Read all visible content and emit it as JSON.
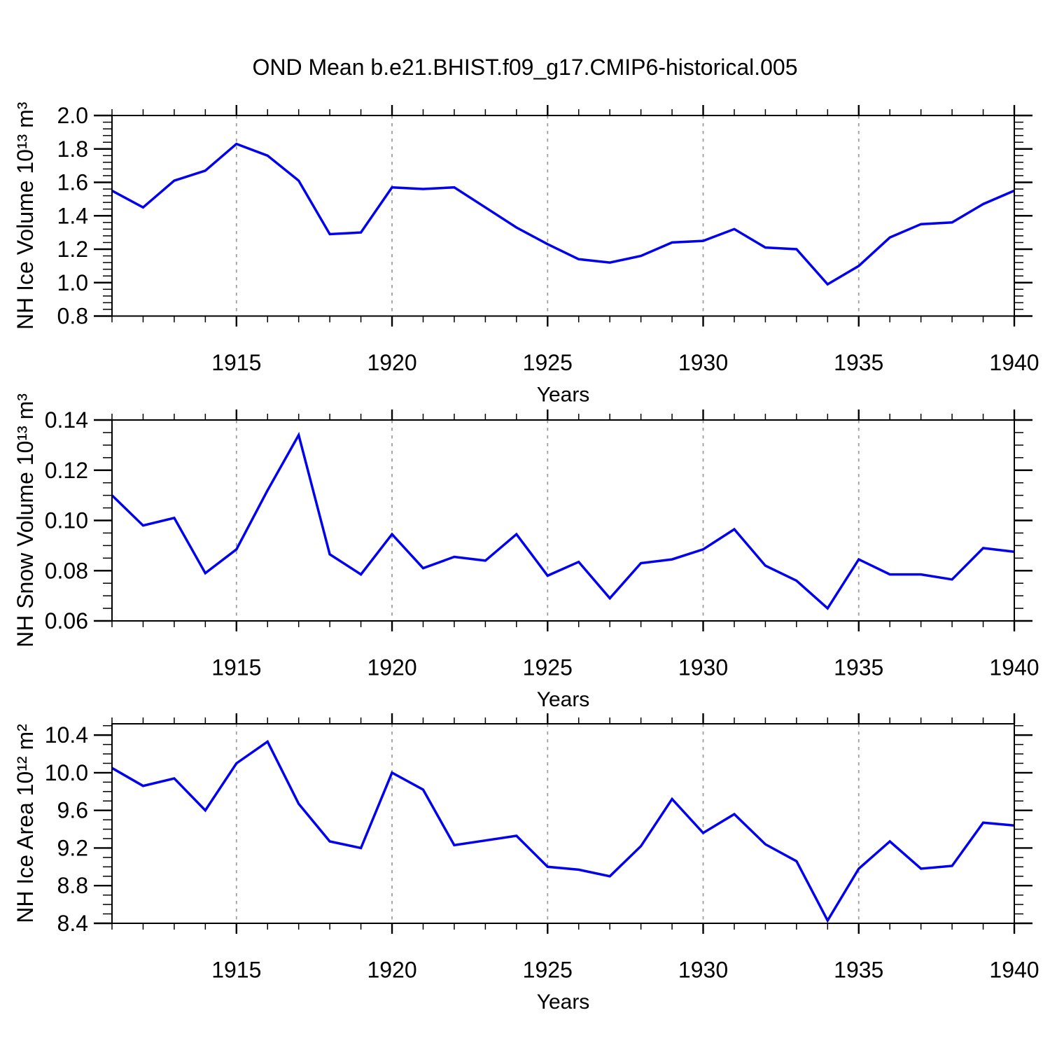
{
  "title": "OND Mean b.e21.BHIST.f09_g17.CMIP6-historical.005",
  "colors": {
    "line": "#0101f0",
    "grid": "#9e9e9e",
    "axis": "#000000",
    "text": "#000000",
    "background": "#ffffff"
  },
  "chart_data": [
    {
      "id": "nh-ice-volume",
      "type": "line",
      "ylabel": "NH Ice Volume 10¹³ m³",
      "xlabel": "Years",
      "x": [
        1911,
        1912,
        1913,
        1914,
        1915,
        1916,
        1917,
        1918,
        1919,
        1920,
        1921,
        1922,
        1923,
        1924,
        1925,
        1926,
        1927,
        1928,
        1929,
        1930,
        1931,
        1932,
        1933,
        1934,
        1935,
        1936,
        1937,
        1938,
        1939,
        1940
      ],
      "values": [
        1.55,
        1.45,
        1.61,
        1.67,
        1.83,
        1.76,
        1.61,
        1.29,
        1.3,
        1.57,
        1.56,
        1.57,
        1.45,
        1.33,
        1.23,
        1.14,
        1.12,
        1.16,
        1.24,
        1.25,
        1.32,
        1.21,
        1.2,
        0.99,
        1.1,
        1.27,
        1.35,
        1.36,
        1.47,
        1.55
      ],
      "xlim": [
        1911,
        1940
      ],
      "ylim": [
        0.8,
        2.0
      ],
      "ytick_values": [
        0.8,
        1.0,
        1.2,
        1.4,
        1.6,
        1.8,
        2.0
      ],
      "ytick_labels": [
        "0.8",
        "1.0",
        "1.2",
        "1.4",
        "1.6",
        "1.8",
        "2.0"
      ],
      "ytick_minor_step": 0.04,
      "xtick_values": [
        1915,
        1920,
        1925,
        1930,
        1935,
        1940
      ],
      "xtick_labels": [
        "1915",
        "1920",
        "1925",
        "1930",
        "1935",
        "1940"
      ],
      "xtick_minor_step": 1,
      "gridline_x": [
        1915,
        1920,
        1925,
        1930,
        1935
      ],
      "grid_style": "dashed",
      "legend": "none"
    },
    {
      "id": "nh-snow-volume",
      "type": "line",
      "ylabel": "NH Snow Volume 10¹³ m³",
      "xlabel": "Years",
      "x": [
        1911,
        1912,
        1913,
        1914,
        1915,
        1916,
        1917,
        1918,
        1919,
        1920,
        1921,
        1922,
        1923,
        1924,
        1925,
        1926,
        1927,
        1928,
        1929,
        1930,
        1931,
        1932,
        1933,
        1934,
        1935,
        1936,
        1937,
        1938,
        1939,
        1940
      ],
      "values": [
        0.11,
        0.098,
        0.101,
        0.079,
        0.0885,
        0.112,
        0.134,
        0.0865,
        0.0785,
        0.0945,
        0.081,
        0.0855,
        0.084,
        0.0945,
        0.078,
        0.0835,
        0.069,
        0.083,
        0.0845,
        0.0885,
        0.0965,
        0.082,
        0.076,
        0.065,
        0.0845,
        0.0785,
        0.0785,
        0.0765,
        0.089,
        0.0875
      ],
      "xlim": [
        1911,
        1940
      ],
      "ylim": [
        0.06,
        0.14
      ],
      "ytick_values": [
        0.06,
        0.08,
        0.1,
        0.12,
        0.14
      ],
      "ytick_labels": [
        "0.06",
        "0.08",
        "0.10",
        "0.12",
        "0.14"
      ],
      "ytick_minor_step": 0.005,
      "xtick_values": [
        1915,
        1920,
        1925,
        1930,
        1935,
        1940
      ],
      "xtick_labels": [
        "1915",
        "1920",
        "1925",
        "1930",
        "1935",
        "1940"
      ],
      "xtick_minor_step": 1,
      "gridline_x": [
        1915,
        1920,
        1925,
        1930,
        1935
      ],
      "grid_style": "dashed",
      "legend": "none"
    },
    {
      "id": "nh-ice-area",
      "type": "line",
      "ylabel": "NH Ice Area 10¹² m²",
      "xlabel": "Years",
      "x": [
        1911,
        1912,
        1913,
        1914,
        1915,
        1916,
        1917,
        1918,
        1919,
        1920,
        1921,
        1922,
        1923,
        1924,
        1925,
        1926,
        1927,
        1928,
        1929,
        1930,
        1931,
        1932,
        1933,
        1934,
        1935,
        1936,
        1937,
        1938,
        1939,
        1940
      ],
      "values": [
        10.05,
        9.86,
        9.94,
        9.6,
        10.1,
        10.33,
        9.67,
        9.27,
        9.2,
        10.0,
        9.82,
        9.23,
        9.28,
        9.33,
        9.0,
        8.97,
        8.9,
        9.22,
        9.72,
        9.36,
        9.56,
        9.24,
        9.06,
        8.43,
        8.98,
        9.27,
        8.98,
        9.01,
        9.47,
        9.44
      ],
      "xlim": [
        1911,
        1940
      ],
      "ylim": [
        8.4,
        10.52
      ],
      "ytick_values": [
        8.4,
        8.8,
        9.2,
        9.6,
        10.0,
        10.4
      ],
      "ytick_labels": [
        "8.4",
        "8.8",
        "9.2",
        "9.6",
        "10.0",
        "10.4"
      ],
      "ytick_minor_step": 0.1,
      "xtick_values": [
        1915,
        1920,
        1925,
        1930,
        1935,
        1940
      ],
      "xtick_labels": [
        "1915",
        "1920",
        "1925",
        "1930",
        "1935",
        "1940"
      ],
      "xtick_minor_step": 1,
      "gridline_x": [
        1915,
        1920,
        1925,
        1930,
        1935
      ],
      "grid_style": "dashed",
      "legend": "none"
    }
  ]
}
